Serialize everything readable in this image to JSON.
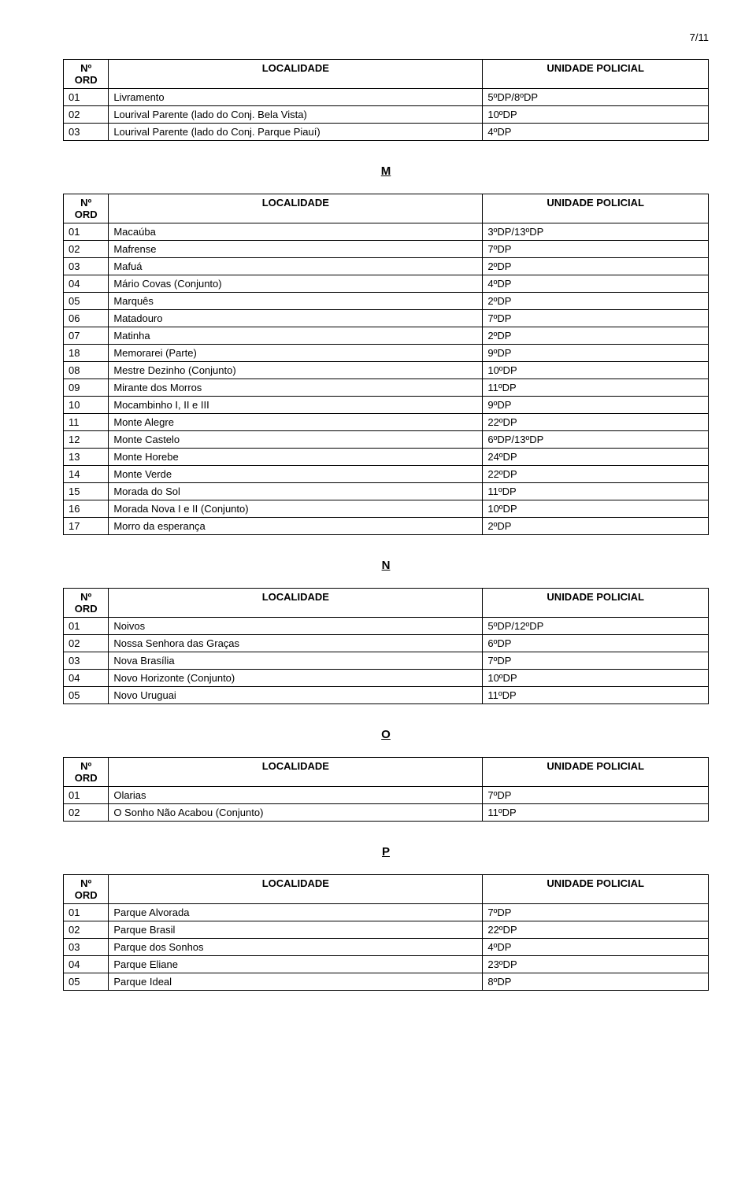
{
  "page_number": "7/11",
  "header": {
    "ord_label_a": "Nº",
    "ord_label_b": "ORD",
    "loc_label": "LOCALIDADE",
    "uni_label": "UNIDADE POLICIAL"
  },
  "letters": {
    "m": "M",
    "n": "N",
    "o": "O",
    "p": "P"
  },
  "table_l": {
    "rows": [
      {
        "n": "01",
        "loc": "Livramento",
        "uni": "5ºDP/8ºDP"
      },
      {
        "n": "02",
        "loc": "Lourival Parente (lado do Conj. Bela Vista)",
        "uni": "10ºDP"
      },
      {
        "n": "03",
        "loc": "Lourival Parente (lado do Conj. Parque Piauí)",
        "uni": "4ºDP"
      }
    ]
  },
  "table_m": {
    "rows": [
      {
        "n": "01",
        "loc": "Macaúba",
        "uni": "3ºDP/13ºDP"
      },
      {
        "n": "02",
        "loc": "Mafrense",
        "uni": "7ºDP"
      },
      {
        "n": "03",
        "loc": "Mafuá",
        "uni": "2ºDP"
      },
      {
        "n": "04",
        "loc": "Mário Covas (Conjunto)",
        "uni": "4ºDP"
      },
      {
        "n": "05",
        "loc": "Marquês",
        "uni": "2ºDP"
      },
      {
        "n": "06",
        "loc": "Matadouro",
        "uni": "7ºDP"
      },
      {
        "n": "07",
        "loc": "Matinha",
        "uni": "2ºDP"
      },
      {
        "n": "18",
        "loc": "Memorarei (Parte)",
        "uni": "9ºDP"
      },
      {
        "n": "08",
        "loc": "Mestre Dezinho (Conjunto)",
        "uni": "10ºDP"
      },
      {
        "n": "09",
        "loc": "Mirante dos Morros",
        "uni": "11ºDP"
      },
      {
        "n": "10",
        "loc": "Mocambinho I, II e III",
        "uni": "9ºDP"
      },
      {
        "n": "11",
        "loc": "Monte Alegre",
        "uni": "22ºDP"
      },
      {
        "n": "12",
        "loc": "Monte Castelo",
        "uni": "6ºDP/13ºDP"
      },
      {
        "n": "13",
        "loc": "Monte Horebe",
        "uni": "24ºDP"
      },
      {
        "n": "14",
        "loc": "Monte Verde",
        "uni": "22ºDP"
      },
      {
        "n": "15",
        "loc": "Morada do Sol",
        "uni": "11ºDP"
      },
      {
        "n": "16",
        "loc": "Morada Nova I e II (Conjunto)",
        "uni": "10ºDP"
      },
      {
        "n": "17",
        "loc": "Morro da esperança",
        "uni": "2ºDP"
      }
    ]
  },
  "table_n": {
    "rows": [
      {
        "n": "01",
        "loc": "Noivos",
        "uni": "5ºDP/12ºDP"
      },
      {
        "n": "02",
        "loc": "Nossa Senhora das Graças",
        "uni": "6ºDP"
      },
      {
        "n": "03",
        "loc": "Nova Brasília",
        "uni": "7ºDP"
      },
      {
        "n": "04",
        "loc": "Novo Horizonte (Conjunto)",
        "uni": "10ºDP"
      },
      {
        "n": "05",
        "loc": "Novo Uruguai",
        "uni": "11ºDP"
      }
    ]
  },
  "table_o": {
    "rows": [
      {
        "n": "01",
        "loc": "Olarias",
        "uni": "7ºDP"
      },
      {
        "n": "02",
        "loc": "O Sonho Não Acabou (Conjunto)",
        "uni": "11ºDP"
      }
    ]
  },
  "table_p": {
    "rows": [
      {
        "n": "01",
        "loc": "Parque Alvorada",
        "uni": "7ºDP"
      },
      {
        "n": "02",
        "loc": "Parque Brasil",
        "uni": "22ºDP"
      },
      {
        "n": "03",
        "loc": "Parque dos Sonhos",
        "uni": "4ºDP"
      },
      {
        "n": "04",
        "loc": "Parque Eliane",
        "uni": "23ºDP"
      },
      {
        "n": "05",
        "loc": "Parque Ideal",
        "uni": "8ºDP"
      }
    ]
  }
}
